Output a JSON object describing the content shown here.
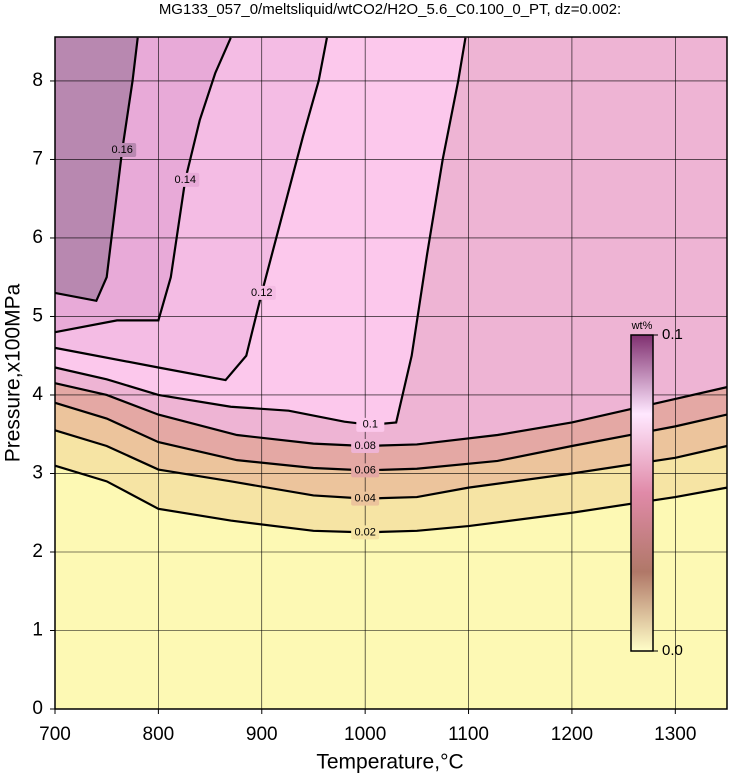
{
  "chart_data": {
    "type": "contour",
    "title": "MG133_057_0/meltsliquid/wtCO2/H2O_5.6_C0.100_0_PT, dz=0.002:",
    "x_label": "Temperature,°C",
    "y_label": "Pressure,x100MPa",
    "xlim": [
      700,
      1350
    ],
    "ylim": [
      0,
      8.56
    ],
    "xticks": [
      700,
      800,
      900,
      1000,
      1100,
      1200,
      1300
    ],
    "yticks": [
      0,
      1,
      2,
      3,
      4,
      5,
      6,
      7,
      8
    ],
    "grid": true,
    "background": "#fdf9b4",
    "line_color": "#000000",
    "series": [
      {
        "name": "0.02",
        "color": "#f6e4a4",
        "x": [
          700,
          750,
          800,
          870,
          950,
          1000,
          1050,
          1100,
          1200,
          1300,
          1350
        ],
        "y": [
          3.1,
          2.9,
          2.55,
          2.4,
          2.27,
          2.25,
          2.27,
          2.33,
          2.5,
          2.7,
          2.82
        ]
      },
      {
        "name": "0.04",
        "color": "#ecc49c",
        "x": [
          700,
          750,
          800,
          870,
          950,
          1000,
          1050,
          1100,
          1200,
          1300,
          1350
        ],
        "y": [
          3.55,
          3.35,
          3.05,
          2.9,
          2.72,
          2.68,
          2.7,
          2.82,
          3.0,
          3.2,
          3.35
        ]
      },
      {
        "name": "0.06",
        "color": "#e4a8a4",
        "x": [
          700,
          750,
          800,
          876,
          950,
          1000,
          1050,
          1128,
          1200,
          1300,
          1350
        ],
        "y": [
          3.9,
          3.7,
          3.4,
          3.17,
          3.07,
          3.04,
          3.06,
          3.16,
          3.35,
          3.6,
          3.75
        ]
      },
      {
        "name": "0.08",
        "color": "#eeb4d4",
        "x": [
          700,
          750,
          800,
          876,
          950,
          1000,
          1050,
          1128,
          1200,
          1300,
          1350
        ],
        "y": [
          4.15,
          4.0,
          3.75,
          3.49,
          3.38,
          3.35,
          3.37,
          3.49,
          3.65,
          3.95,
          4.1
        ]
      },
      {
        "name": "0.1",
        "color": "#fcc8ec",
        "x": [
          700,
          750,
          800,
          870,
          926,
          980,
          1005,
          1030,
          1045,
          1060,
          1075,
          1090,
          1097
        ],
        "y": [
          4.35,
          4.2,
          4.0,
          3.85,
          3.8,
          3.66,
          3.62,
          3.65,
          4.5,
          5.8,
          7.0,
          8.0,
          8.55
        ]
      },
      {
        "name": "0.12",
        "color": "#f4bce4",
        "x": [
          700,
          800,
          865,
          885,
          900,
          920,
          940,
          955,
          963
        ],
        "y": [
          4.6,
          4.35,
          4.19,
          4.5,
          5.3,
          6.3,
          7.3,
          8.0,
          8.55
        ]
      },
      {
        "name": "0.14",
        "color": "#e8aad8",
        "x": [
          700,
          760,
          800,
          812,
          826,
          840,
          855,
          870
        ],
        "y": [
          4.8,
          4.95,
          4.95,
          5.5,
          6.74,
          7.5,
          8.1,
          8.55
        ]
      },
      {
        "name": "0.16",
        "color": "#b888b0",
        "x": [
          700,
          740,
          750,
          765,
          775,
          780
        ],
        "y": [
          5.3,
          5.2,
          5.5,
          7.12,
          8.0,
          8.55
        ]
      }
    ],
    "colorbar": {
      "label": "wt%",
      "clim": [
        0,
        0.1
      ],
      "colors": [
        "#fffec8",
        "#b07868",
        "#e08aa8",
        "#ffe8ff",
        "#803070"
      ],
      "ticks": [
        {
          "value": 0,
          "label": "0.0"
        },
        {
          "value": 0.1,
          "label": "0.1"
        }
      ]
    }
  }
}
